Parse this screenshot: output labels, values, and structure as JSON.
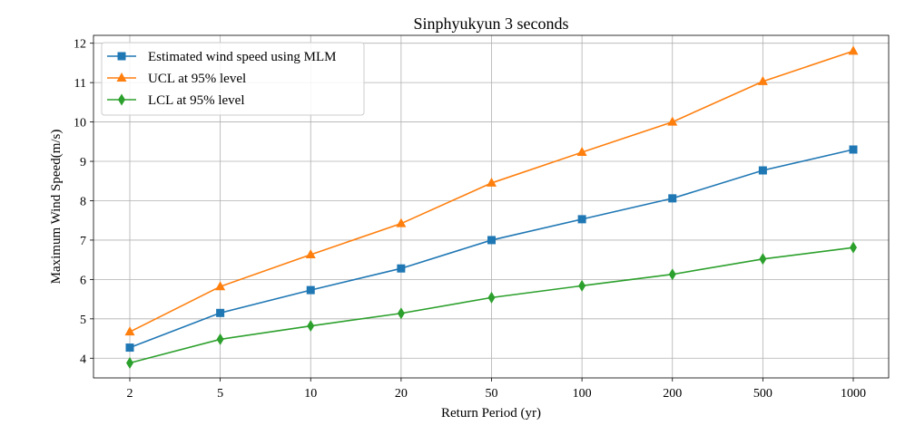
{
  "chart_data": {
    "type": "line",
    "title": "Sinphyukyun 3 seconds",
    "xlabel": "Return Period (yr)",
    "ylabel": "Maximum Wind Speed(m/s)",
    "categories": [
      "2",
      "5",
      "10",
      "20",
      "50",
      "100",
      "200",
      "500",
      "1000"
    ],
    "ylim": [
      3.5,
      12.2
    ],
    "yticks": [
      4,
      5,
      6,
      7,
      8,
      9,
      10,
      11,
      12
    ],
    "grid": true,
    "legend_position": "top-left",
    "series": [
      {
        "name": "Estimated wind speed using MLM",
        "color": "#1f77b4",
        "marker": "square",
        "values": [
          4.27,
          5.15,
          5.73,
          6.28,
          7.0,
          7.53,
          8.06,
          8.77,
          9.3
        ]
      },
      {
        "name": "UCL at 95% level",
        "color": "#ff7f0e",
        "marker": "triangle",
        "values": [
          4.67,
          5.82,
          6.63,
          7.42,
          8.45,
          9.23,
          10.0,
          11.03,
          11.8
        ]
      },
      {
        "name": "LCL at 95% level",
        "color": "#2ca02c",
        "marker": "diamond",
        "values": [
          3.88,
          4.48,
          4.82,
          5.14,
          5.54,
          5.84,
          6.13,
          6.52,
          6.81
        ]
      }
    ]
  }
}
